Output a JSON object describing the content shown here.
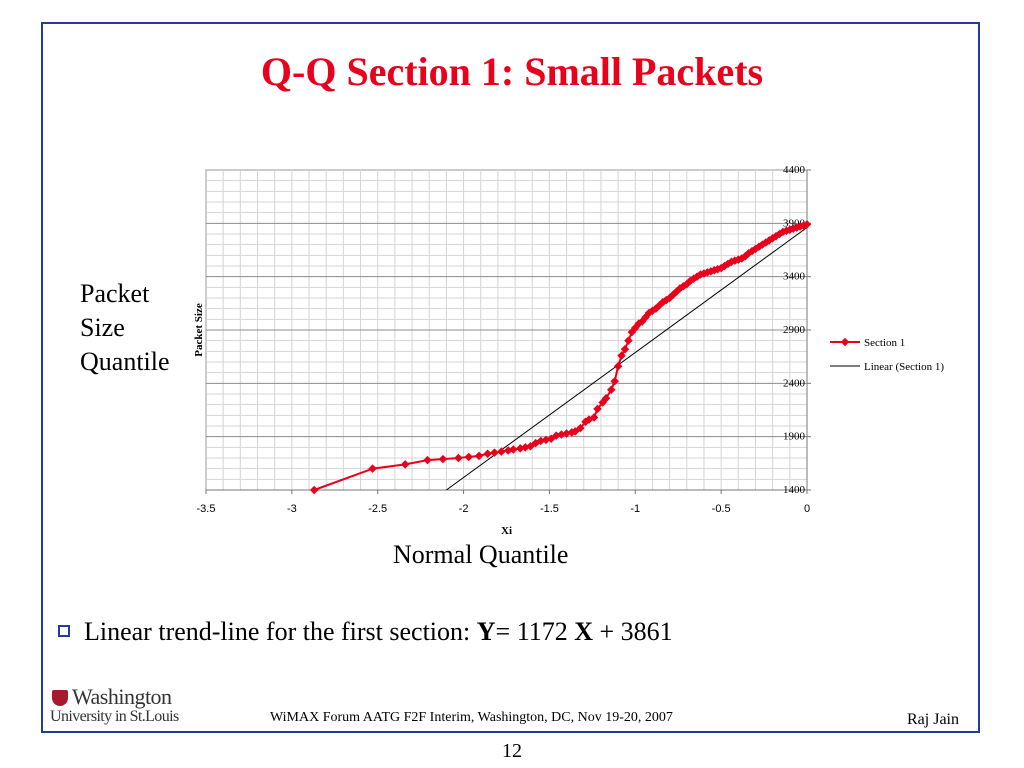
{
  "slide": {
    "title": "Q-Q Section 1: Small Packets",
    "y_quantile_lines": [
      "Packet",
      "Size",
      "Quantile"
    ],
    "x_quantile": "Normal Quantile",
    "bullet": {
      "prefix": "Linear trend-line for the first section: ",
      "y_var": "Y",
      "eq_mid": "= 1172 ",
      "x_var": "X",
      "eq_tail": " + 3861"
    },
    "footer": "WiMAX Forum AATG F2F Interim, Washington, DC, Nov 19-20, 2007",
    "author": "Raj Jain",
    "page_number": "12",
    "logo_line1": "Washington",
    "logo_line2": "University in St.Louis"
  },
  "chart_data": {
    "type": "scatter",
    "xlabel": "Xi",
    "ylabel": "Packet Size",
    "xlim": [
      -3.5,
      0
    ],
    "ylim": [
      1400,
      4400
    ],
    "x_ticks": [
      "-3.5",
      "-3",
      "-2.5",
      "-2",
      "-1.5",
      "-1",
      "-0.5",
      "0"
    ],
    "y_ticks": [
      "1400",
      "1900",
      "2400",
      "2900",
      "3400",
      "3900",
      "4400"
    ],
    "grid": true,
    "legend_position": "right",
    "series_color": "#e8001c",
    "trend_color": "#000000",
    "series": [
      {
        "name": "Section 1",
        "x": [
          -2.87,
          -2.53,
          -2.34,
          -2.21,
          -2.12,
          -2.03,
          -1.97,
          -1.91,
          -1.86,
          -1.82,
          -1.78,
          -1.74,
          -1.71,
          -1.67,
          -1.64,
          -1.61,
          -1.58,
          -1.55,
          -1.52,
          -1.49,
          -1.46,
          -1.43,
          -1.4,
          -1.37,
          -1.35,
          -1.32,
          -1.29,
          -1.27,
          -1.24,
          -1.22,
          -1.19,
          -1.17,
          -1.14,
          -1.12,
          -1.1,
          -1.08,
          -1.06,
          -1.04,
          -1.02,
          -1.0,
          -0.98,
          -0.96,
          -0.94,
          -0.92,
          -0.9,
          -0.88,
          -0.86,
          -0.84,
          -0.82,
          -0.8,
          -0.78,
          -0.76,
          -0.74,
          -0.72,
          -0.7,
          -0.68,
          -0.66,
          -0.64,
          -0.62,
          -0.6,
          -0.58,
          -0.56,
          -0.54,
          -0.52,
          -0.5,
          -0.48,
          -0.46,
          -0.44,
          -0.42,
          -0.4,
          -0.38,
          -0.36,
          -0.34,
          -0.32,
          -0.3,
          -0.28,
          -0.26,
          -0.24,
          -0.22,
          -0.2,
          -0.18,
          -0.16,
          -0.14,
          -0.12,
          -0.1,
          -0.08,
          -0.06,
          -0.04,
          -0.02,
          0.0
        ],
        "y": [
          1400,
          1600,
          1640,
          1680,
          1690,
          1700,
          1710,
          1720,
          1740,
          1750,
          1760,
          1770,
          1780,
          1790,
          1800,
          1810,
          1840,
          1860,
          1870,
          1880,
          1910,
          1920,
          1930,
          1940,
          1950,
          1980,
          2040,
          2060,
          2080,
          2160,
          2220,
          2260,
          2340,
          2420,
          2560,
          2660,
          2720,
          2800,
          2880,
          2920,
          2960,
          2980,
          3020,
          3060,
          3080,
          3100,
          3130,
          3160,
          3180,
          3200,
          3230,
          3260,
          3290,
          3310,
          3330,
          3360,
          3380,
          3400,
          3420,
          3430,
          3440,
          3450,
          3460,
          3470,
          3480,
          3500,
          3520,
          3540,
          3550,
          3560,
          3570,
          3590,
          3620,
          3640,
          3660,
          3680,
          3700,
          3720,
          3740,
          3760,
          3780,
          3800,
          3820,
          3830,
          3840,
          3850,
          3860,
          3870,
          3880,
          3890
        ]
      },
      {
        "name": "Linear (Section 1)",
        "x": [
          -2.1,
          0.0
        ],
        "y": [
          1400,
          3861
        ]
      }
    ]
  }
}
